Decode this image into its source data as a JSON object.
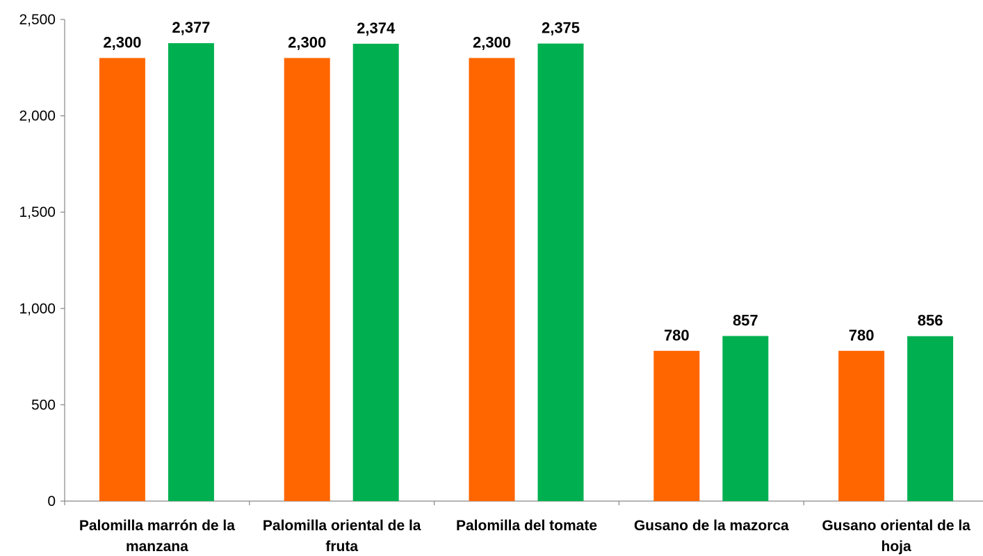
{
  "chart_data": {
    "type": "bar",
    "title": "",
    "xlabel": "",
    "ylabel": "",
    "ylim": [
      0,
      2500
    ],
    "yticks": [
      0,
      500,
      1000,
      1500,
      2000,
      2500
    ],
    "ytick_labels": [
      "0",
      "500",
      "1,000",
      "1,500",
      "2,000",
      "2,500"
    ],
    "grid": false,
    "legend": "none",
    "categories": [
      [
        "Palomilla marrón de la",
        "manzana"
      ],
      [
        "Palomilla oriental de la",
        "fruta"
      ],
      [
        "Palomilla del tomate"
      ],
      [
        "Gusano de la mazorca"
      ],
      [
        "Gusano oriental de la",
        "hoja"
      ]
    ],
    "series": [
      {
        "color": "#FF6600",
        "values": [
          2300,
          2300,
          2300,
          780,
          780
        ],
        "labels": [
          "2,300",
          "2,300",
          "2,300",
          "780",
          "780"
        ]
      },
      {
        "color": "#00B050",
        "values": [
          2377,
          2374,
          2375,
          857,
          856
        ],
        "labels": [
          "2,377",
          "2,374",
          "2,375",
          "857",
          "856"
        ]
      }
    ]
  }
}
